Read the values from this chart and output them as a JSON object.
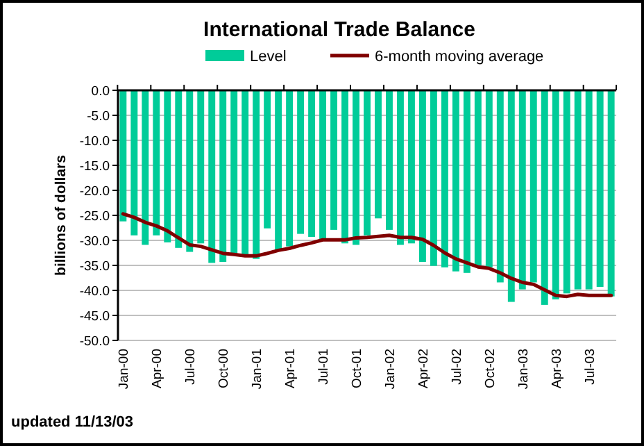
{
  "chart_data": {
    "type": "bar",
    "title": "International Trade Balance",
    "ylabel": "billions of dollars",
    "categories": [
      "Jan-00",
      null,
      null,
      "Apr-00",
      null,
      null,
      "Jul-00",
      null,
      null,
      "Oct-00",
      null,
      null,
      "Jan-01",
      null,
      null,
      "Apr-01",
      null,
      null,
      "Jul-01",
      null,
      null,
      "Oct-01",
      null,
      null,
      "Jan-02",
      null,
      null,
      "Apr-02",
      null,
      null,
      "Jul-02",
      null,
      null,
      "Oct-02",
      null,
      null,
      "Jan-03",
      null,
      null,
      "Apr-03",
      null,
      null,
      "Jul-03",
      null,
      null
    ],
    "series": [
      {
        "name": "Level",
        "color": "#00cc99",
        "values": [
          -26.2,
          -29.0,
          -30.9,
          -29.0,
          -30.4,
          -31.5,
          -32.3,
          -30.6,
          -34.5,
          -34.3,
          -32.6,
          -32.8,
          -33.7,
          -27.6,
          -31.8,
          -31.2,
          -28.7,
          -29.3,
          -29.8,
          -27.9,
          -30.6,
          -30.9,
          -29.0,
          -25.6,
          -27.9,
          -30.9,
          -30.6,
          -34.3,
          -35.1,
          -35.4,
          -36.2,
          -36.5,
          -35.1,
          -35.4,
          -38.4,
          -42.3,
          -39.8,
          -38.4,
          -42.9,
          -41.8,
          -40.6,
          -39.8,
          -39.8,
          -39.3,
          -41.2
        ]
      },
      {
        "name": "6-month moving average",
        "type": "line",
        "color": "#800000",
        "values": [
          -24.7,
          -25.4,
          -26.4,
          -27.1,
          -28.1,
          -29.5,
          -30.9,
          -31.2,
          -31.9,
          -32.6,
          -32.8,
          -33.1,
          -33.1,
          -32.6,
          -32.0,
          -31.6,
          -31.0,
          -30.5,
          -29.9,
          -29.9,
          -29.9,
          -29.5,
          -29.4,
          -29.2,
          -29.0,
          -29.4,
          -29.4,
          -29.8,
          -31.0,
          -32.5,
          -33.7,
          -34.5,
          -35.3,
          -35.6,
          -36.5,
          -37.6,
          -38.4,
          -38.8,
          -39.9,
          -41.0,
          -41.2,
          -40.8,
          -41.0,
          -41.0,
          -41.0
        ]
      }
    ],
    "ylim": [
      -50,
      0
    ],
    "yticks": [
      {
        "value": 0,
        "label": "0.0"
      },
      {
        "value": -5,
        "label": "-5.0"
      },
      {
        "value": -10,
        "label": "-10.0"
      },
      {
        "value": -15,
        "label": "-15.0"
      },
      {
        "value": -20,
        "label": "-20.0"
      },
      {
        "value": -25,
        "label": "-25.0"
      },
      {
        "value": -30,
        "label": "-30.0"
      },
      {
        "value": -35,
        "label": "-35.0"
      },
      {
        "value": -40,
        "label": "-40.0"
      },
      {
        "value": -45,
        "label": "-45.0"
      },
      {
        "value": -50,
        "label": "-50.0"
      }
    ],
    "grid": "y",
    "legend": "top",
    "annotations": [
      "updated 11/13/03"
    ]
  }
}
